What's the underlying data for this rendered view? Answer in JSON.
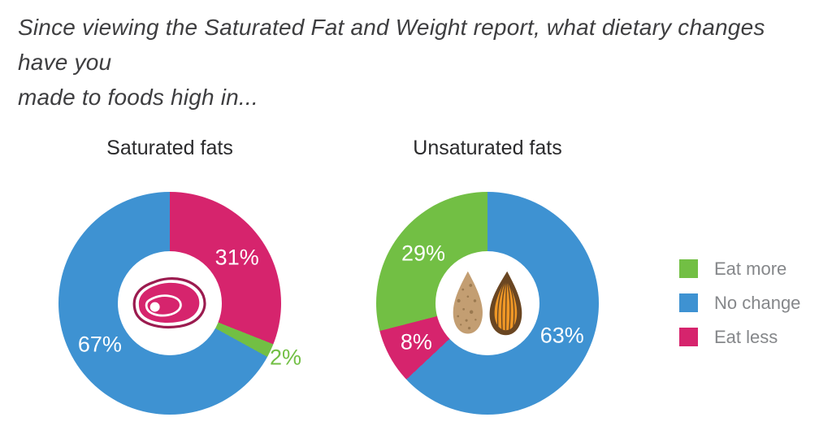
{
  "question": {
    "line1": "Since viewing the Saturated Fat and Weight report, what dietary changes have you",
    "line2": "made to foods high in..."
  },
  "colors": {
    "eat_more_green": "#72bf44",
    "no_change_blue": "#3e92d2",
    "eat_less_pink": "#d6246d",
    "question_text": "#3e3e40",
    "chart_title_text": "#2a2a2c",
    "legend_text": "#85878a",
    "steak_outline": "#9b1b4f",
    "almond_shell_tan": "#c39e72",
    "almond_kernel_orange": "#ef9726",
    "almond_shell_brown": "#6a4622"
  },
  "legend": {
    "items": [
      {
        "label": "Eat more",
        "color": "#72bf44"
      },
      {
        "label": "No change",
        "color": "#3e92d2"
      },
      {
        "label": "Eat less",
        "color": "#d6246d"
      }
    ]
  },
  "chart_data": [
    {
      "type": "pie",
      "subtype": "donut",
      "title": "Saturated fats",
      "center_icon": "steak-icon",
      "start_angle_deg": 0,
      "direction": "clockwise",
      "slices": [
        {
          "name": "Eat less",
          "value": 31,
          "label": "31%",
          "color": "#d6246d",
          "label_placement": "inside",
          "label_color": "#ffffff"
        },
        {
          "name": "Eat more",
          "value": 2,
          "label": "2%",
          "color": "#72bf44",
          "label_placement": "outside",
          "label_color": "#72bf44"
        },
        {
          "name": "No change",
          "value": 67,
          "label": "67%",
          "color": "#3e92d2",
          "label_placement": "inside",
          "label_color": "#ffffff"
        }
      ]
    },
    {
      "type": "pie",
      "subtype": "donut",
      "title": "Unsaturated fats",
      "center_icon": "almonds-icon",
      "start_angle_deg": 0,
      "direction": "clockwise",
      "slices": [
        {
          "name": "No change",
          "value": 63,
          "label": "63%",
          "color": "#3e92d2",
          "label_placement": "inside",
          "label_color": "#ffffff"
        },
        {
          "name": "Eat less",
          "value": 8,
          "label": "8%",
          "color": "#d6246d",
          "label_placement": "inside",
          "label_color": "#ffffff"
        },
        {
          "name": "Eat more",
          "value": 29,
          "label": "29%",
          "color": "#72bf44",
          "label_placement": "inside",
          "label_color": "#ffffff"
        }
      ]
    }
  ]
}
